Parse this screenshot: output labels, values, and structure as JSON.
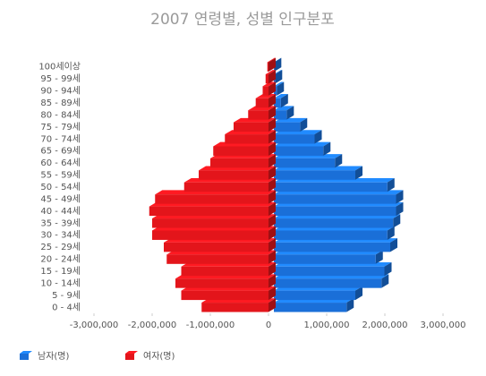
{
  "chart_data": {
    "type": "pyramid",
    "title": "2007 연령별, 성별 인구분포",
    "categories": [
      "0 - 4세",
      "5 - 9세",
      "10 - 14세",
      "15 - 19세",
      "20 - 24세",
      "25 - 29세",
      "30 - 34세",
      "35 - 39세",
      "40 - 44세",
      "45 - 49세",
      "50 - 54세",
      "55 - 59세",
      "60 - 64세",
      "65 - 69세",
      "70 - 74세",
      "75 - 79세",
      "80 - 84세",
      "85 - 89세",
      "90 - 94세",
      "95 - 99세",
      "100세이상"
    ],
    "series": [
      {
        "name": "남자(명)",
        "color": "#1a6fd8",
        "values": [
          1250000,
          1400000,
          1850000,
          1900000,
          1750000,
          2000000,
          1950000,
          2050000,
          2100000,
          2100000,
          1950000,
          1400000,
          1050000,
          850000,
          700000,
          450000,
          220000,
          120000,
          50000,
          20000,
          5000
        ]
      },
      {
        "name": "여자(명)",
        "color": "#e3151b",
        "values": [
          -1150000,
          -1500000,
          -1600000,
          -1500000,
          -1750000,
          -1800000,
          -2000000,
          -2000000,
          -2050000,
          -1950000,
          -1450000,
          -1200000,
          -1000000,
          -950000,
          -750000,
          -600000,
          -350000,
          -220000,
          -100000,
          -50000,
          -20000
        ]
      }
    ],
    "xlim": [
      -3000000,
      3000000
    ],
    "xticks": [
      {
        "value": -3000000,
        "label": "-3,000,000"
      },
      {
        "value": -2000000,
        "label": "-2,000,000"
      },
      {
        "value": -1000000,
        "label": "-1,000,000"
      },
      0,
      {
        "value": 1000000,
        "label": "1,000,000"
      },
      {
        "value": 2000000,
        "label": "2,000,000"
      },
      {
        "value": 3000000,
        "label": "3,000,000"
      }
    ],
    "legend": "bottom-left"
  }
}
